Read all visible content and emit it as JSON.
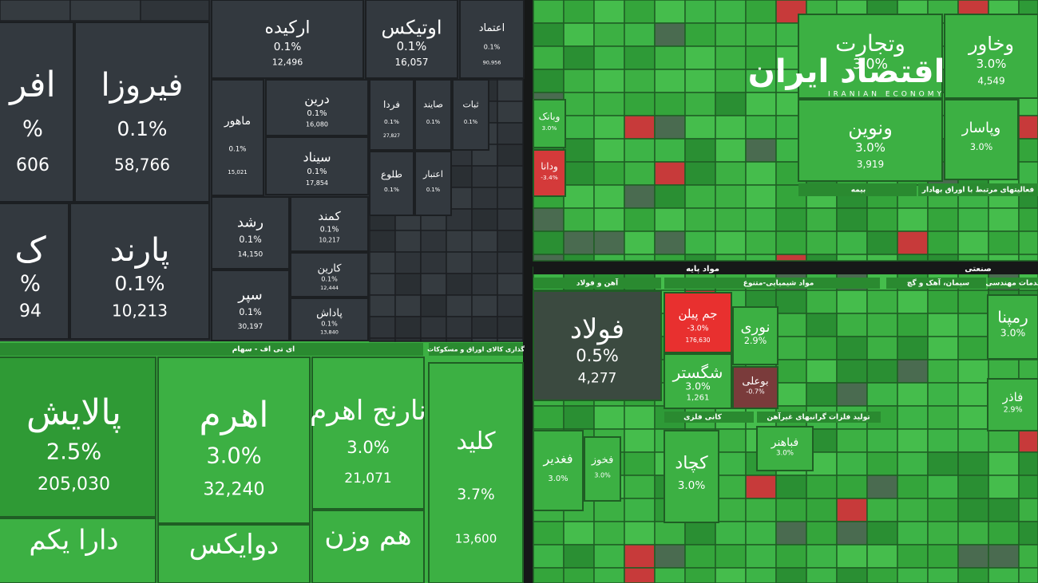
{
  "tiles": [
    {
      "name": "افر",
      "change": "%",
      "volume": "606"
    },
    {
      "name": "فیروزا",
      "change": "0.1%",
      "volume": "58,766"
    },
    {
      "name": "ک",
      "change": "%",
      "volume": "94"
    },
    {
      "name": "پارند",
      "change": "0.1%",
      "volume": "10,213"
    },
    {
      "name": "ارکیده",
      "change": "0.1%",
      "volume": "12,496"
    },
    {
      "name": "اوتیکس",
      "change": "0.1%",
      "volume": "16,057"
    },
    {
      "name": "اعتماد",
      "change": "0.1%",
      "volume": "90,956"
    },
    {
      "name": "ماهور",
      "change": "0.1%",
      "volume": "15,021"
    },
    {
      "name": "درین",
      "change": "0.1%",
      "volume": "16,080"
    },
    {
      "name": "سیناد",
      "change": "0.1%",
      "volume": "17,854"
    },
    {
      "name": "رشد",
      "change": "0.1%",
      "volume": "14,150"
    },
    {
      "name": "سپر",
      "change": "0.1%",
      "volume": "30,197"
    },
    {
      "name": "کمند",
      "change": "0.1%",
      "volume": "10,217"
    },
    {
      "name": "کارین",
      "change": "0.1%",
      "volume": "12,444"
    },
    {
      "name": "پاداش",
      "change": "0.1%",
      "volume": "13,840"
    },
    {
      "name": "فردا",
      "change": "0.1%",
      "volume": "27,827"
    },
    {
      "name": "صایند",
      "change": "0.1%"
    },
    {
      "name": "ثبات",
      "change": "0.1%"
    },
    {
      "name": "طلوع",
      "change": "0.1%"
    },
    {
      "name": "اعتبار",
      "change": "0.1%"
    },
    {
      "name": "پالایش",
      "change": "2.5%",
      "volume": "205,030"
    },
    {
      "name": "اهرم",
      "change": "3.0%",
      "volume": "32,240"
    },
    {
      "name": "نارنج اهرم",
      "change": "3.0%",
      "volume": "21,071"
    },
    {
      "name": "دارا یکم"
    },
    {
      "name": "دوایکس"
    },
    {
      "name": "هم وزن"
    },
    {
      "name": "کلید",
      "change": "3.7%",
      "volume": "13,600"
    },
    {
      "name": "وتجارت",
      "change": "3.0%"
    },
    {
      "name": "وخاور",
      "change": "3.0%",
      "volume": "4,549"
    },
    {
      "name": "ونوین",
      "change": "3.0%",
      "volume": "3,919"
    },
    {
      "name": "وپاسار",
      "change": "3.0%"
    },
    {
      "name": "وبانک",
      "change": "3.0%"
    },
    {
      "name": "ودانا",
      "change": "-3.4%"
    },
    {
      "name": "فولاد",
      "change": "0.5%",
      "volume": "4,277"
    },
    {
      "name": "جم پیلن",
      "change": "-3.0%",
      "volume": "176,630"
    },
    {
      "name": "نوری",
      "change": "2.9%"
    },
    {
      "name": "شگستر",
      "change": "3.0%",
      "volume": "1,261"
    },
    {
      "name": "بوعلی",
      "change": "-0.7%"
    },
    {
      "name": "کچاد",
      "change": "3.0%"
    },
    {
      "name": "فغدیر",
      "change": "3.0%"
    },
    {
      "name": "فخوز",
      "change": "3.0%"
    },
    {
      "name": "رمپنا",
      "change": "3.0%"
    },
    {
      "name": "فاذر",
      "change": "2.9%"
    },
    {
      "name": "فباهنر",
      "change": "3.0%"
    }
  ],
  "headers": [
    "ای تی اف - سهام",
    "گذاری کالای اوراق و مسکوکات",
    "بیمه",
    "فعالیتهای مرتبط با اوراق بهادار",
    "مواد پایه",
    "صنعتی",
    "آهن و فولاد",
    "مواد شیمیایی-متنوع",
    "سیمان، آهک و گچ",
    "خدمات مهندسی",
    "کانی فلزی",
    "تولید فلزات گرانبهای غیرآهن"
  ],
  "logo": {
    "title": "اقتصاد ایران",
    "subtitle": "IRANIAN ECONOMY"
  }
}
